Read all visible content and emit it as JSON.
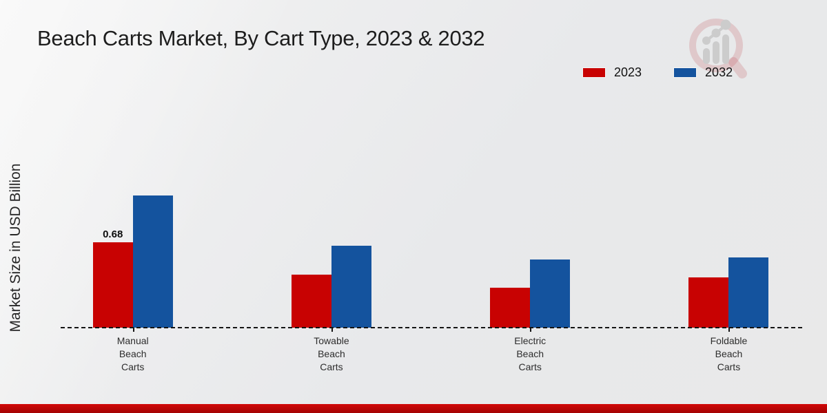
{
  "chart_data": {
    "type": "bar",
    "title": "Beach Carts Market, By Cart Type, 2023 & 2032",
    "xlabel": "",
    "ylabel": "Market Size in USD Billion",
    "value_unit": "USD Billion",
    "categories": [
      "Manual Beach Carts",
      "Towable Beach Carts",
      "Electric Beach Carts",
      "Foldable Beach Carts"
    ],
    "series": [
      {
        "name": "2023",
        "color": "#c80202",
        "values": [
          0.68,
          0.42,
          0.32,
          0.4
        ],
        "point_labels": [
          "0.68",
          "",
          "",
          ""
        ]
      },
      {
        "name": "2032",
        "color": "#14539e",
        "values": [
          1.05,
          0.65,
          0.54,
          0.56
        ],
        "point_labels": [
          "",
          "",
          "",
          ""
        ]
      }
    ],
    "ylim": [
      0,
      1.2
    ],
    "grid": false,
    "legend_position": "top-right",
    "axis_style": "dashed baseline only, ticks below axis, no y-axis ticks"
  },
  "branding": {
    "watermark_icon": "magnifier-growth-chart-logo"
  },
  "colors": {
    "series_2023": "#c80202",
    "series_2032": "#14539e",
    "footer_accent": "#c00606",
    "background": "#e9e9e9",
    "axis": "#141414",
    "watermark_ring": "rgba(186,62,74,0.22)",
    "watermark_bars": "#c9c9c9"
  }
}
